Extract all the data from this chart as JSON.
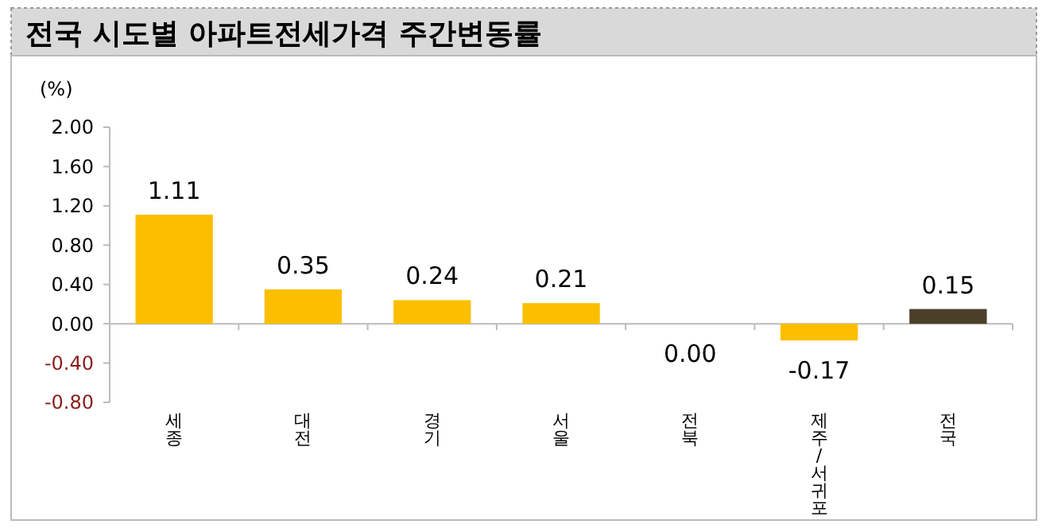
{
  "chart_data": {
    "type": "bar",
    "title": "전국 시도별 아파트전세가격 주간변동률",
    "ylabel": "(%)",
    "categories": [
      "세종",
      "대전",
      "경기",
      "서울",
      "전북",
      "제주/서귀포",
      "전국"
    ],
    "values": [
      1.11,
      0.35,
      0.24,
      0.21,
      0,
      -0.17,
      0.15
    ],
    "colors": [
      "#fbbf00",
      "#fbbf00",
      "#fbbf00",
      "#fbbf00",
      "#fbbf00",
      "#fbbf00",
      "#4a4029"
    ],
    "value_labels": [
      "1.11",
      "0.35",
      "0.24",
      "0.21",
      "0.00",
      "-0.17",
      "0.15"
    ],
    "ylim": [
      -0.8,
      2
    ],
    "yticks": [
      {
        "value": -0.8,
        "label": "-0.80"
      },
      {
        "value": -0.4,
        "label": "-0.40"
      },
      {
        "value": 0,
        "label": "0.00"
      },
      {
        "value": 0.4,
        "label": "0.40"
      },
      {
        "value": 0.8,
        "label": "0.80"
      },
      {
        "value": 1.2,
        "label": "1.20"
      },
      {
        "value": 1.6,
        "label": "1.60"
      },
      {
        "value": 2,
        "label": "2.00"
      }
    ]
  }
}
